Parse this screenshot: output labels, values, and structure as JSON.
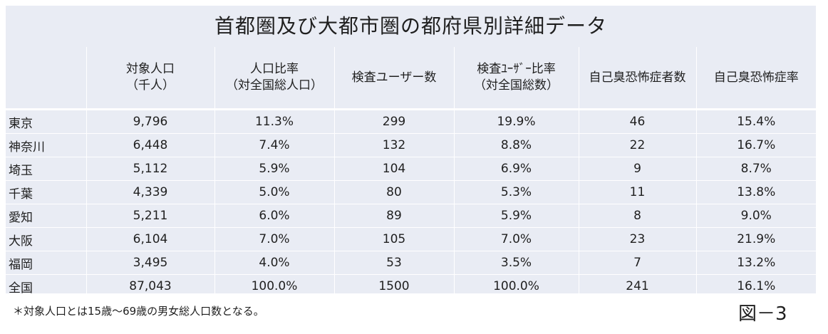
{
  "title": "首都圏及び大都市圏の都府県別詳細データ",
  "columns": [
    {
      "lines": [
        ""
      ]
    },
    {
      "lines": [
        "対象人口",
        "（千人）"
      ]
    },
    {
      "lines": [
        "人口比率",
        "（対全国総人口）"
      ]
    },
    {
      "lines": [
        "検査ユーザー数"
      ]
    },
    {
      "lines": [
        "検査ﾕｰｻﾞｰ比率",
        "（対全国総数）"
      ]
    },
    {
      "lines": [
        "自己臭恐怖症者数"
      ]
    },
    {
      "lines": [
        "自己臭恐怖症率"
      ]
    }
  ],
  "rows": [
    {
      "name": "東京",
      "population": "9,796",
      "pop_ratio": "11.3%",
      "users": "299",
      "user_ratio": "19.9%",
      "patients": "46",
      "rate": "15.4%"
    },
    {
      "name": "神奈川",
      "population": "6,448",
      "pop_ratio": "7.4%",
      "users": "132",
      "user_ratio": "8.8%",
      "patients": "22",
      "rate": "16.7%"
    },
    {
      "name": "埼玉",
      "population": "5,112",
      "pop_ratio": "5.9%",
      "users": "104",
      "user_ratio": "6.9%",
      "patients": "9",
      "rate": "8.7%"
    },
    {
      "name": "千葉",
      "population": "4,339",
      "pop_ratio": "5.0%",
      "users": "80",
      "user_ratio": "5.3%",
      "patients": "11",
      "rate": "13.8%"
    },
    {
      "name": "愛知",
      "population": "5,211",
      "pop_ratio": "6.0%",
      "users": "89",
      "user_ratio": "5.9%",
      "patients": "8",
      "rate": "9.0%"
    },
    {
      "name": "大阪",
      "population": "6,104",
      "pop_ratio": "7.0%",
      "users": "105",
      "user_ratio": "7.0%",
      "patients": "23",
      "rate": "21.9%"
    },
    {
      "name": "福岡",
      "population": "3,495",
      "pop_ratio": "4.0%",
      "users": "53",
      "user_ratio": "3.5%",
      "patients": "7",
      "rate": "13.2%"
    },
    {
      "name": "全国",
      "population": "87,043",
      "pop_ratio": "100.0%",
      "users": "1500",
      "user_ratio": "100.0%",
      "patients": "241",
      "rate": "16.1%"
    }
  ],
  "footnote": "＊対象人口とは15歳～69歳の男女総人口数となる。",
  "figure_label": "図－3",
  "colors": {
    "table_bg": "#e9ecf4",
    "grid": "#ffffff",
    "text": "#1f1f1f"
  }
}
